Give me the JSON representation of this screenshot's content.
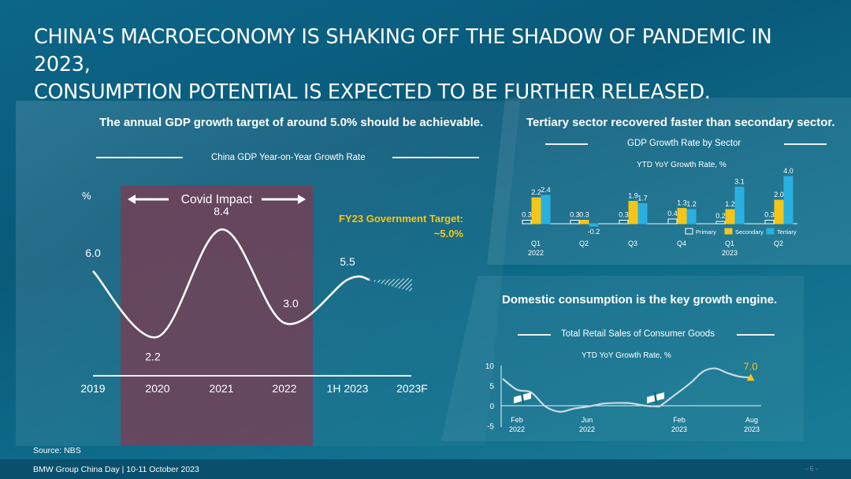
{
  "title_line1": "CHINA'S MACROECONOMY IS SHAKING OFF THE SHADOW OF PANDEMIC IN 2023,",
  "title_line2": "CONSUMPTION POTENTIAL IS EXPECTED TO BE FURTHER RELEASED.",
  "source": "Source: NBS",
  "footer": "BMW Group China Day | 10-11 October 2023",
  "page": "- 6 -",
  "colors": {
    "primary": "#ffffff",
    "secondary": "#f5c518",
    "tertiary": "#2ab0e0",
    "covid": "#7a3c52",
    "target": "#f5c518"
  },
  "panels": {
    "gdp": {
      "header": "The annual GDP growth target of around 5.0% should be achievable.",
      "subtitle": "China GDP Year-on-Year Growth Rate",
      "unit": "%",
      "covid_label": "Covid Impact",
      "target_line1": "FY23 Government Target:",
      "target_line2": "~5.0%"
    },
    "sector": {
      "header": "Tertiary sector recovered faster than secondary sector.",
      "subtitle": "GDP Growth Rate by Sector",
      "unit_label": "YTD YoY Growth Rate, %"
    },
    "retail": {
      "header": "Domestic consumption is the key growth engine.",
      "subtitle": "Total Retail Sales of Consumer Goods",
      "unit_label": "YTD YoY Growth Rate, %"
    }
  },
  "chart_data": [
    {
      "type": "line",
      "x": [
        "2019",
        "2020",
        "2021",
        "2022",
        "1H 2023",
        "2023F"
      ],
      "values": [
        6.0,
        2.2,
        8.4,
        3.0,
        5.5,
        5.0
      ],
      "value_labels": [
        "6.0",
        "2.2",
        "8.4",
        "3.0",
        "5.5",
        ""
      ],
      "forecast_from": "1H 2023",
      "shaded_range": [
        "2020",
        "2022"
      ],
      "ylabel": "%"
    },
    {
      "type": "bar",
      "categories": [
        "Q1",
        "Q2",
        "Q3",
        "Q4",
        "Q1",
        "Q2"
      ],
      "category_years": [
        "2022",
        "",
        "",
        "",
        "2023",
        ""
      ],
      "series": [
        {
          "name": "Primary",
          "values": [
            0.3,
            0.3,
            0.3,
            0.4,
            0.2,
            0.3
          ]
        },
        {
          "name": "Secondary",
          "values": [
            2.2,
            0.3,
            1.9,
            1.3,
            1.2,
            2.0
          ]
        },
        {
          "name": "Tertiary",
          "values": [
            2.4,
            -0.2,
            1.7,
            1.2,
            3.1,
            4.0
          ]
        }
      ],
      "legend": "bottom-right"
    },
    {
      "type": "line",
      "x_ticks": [
        {
          "month": "Feb",
          "year": "2022"
        },
        {
          "month": "Jun",
          "year": "2022"
        },
        {
          "month": "Feb",
          "year": "2023"
        },
        {
          "month": "Aug",
          "year": "2023"
        }
      ],
      "y_ticks": [
        "10",
        "5",
        "0",
        "-5"
      ],
      "ylim": [
        -5,
        10
      ],
      "points": [
        {
          "x": "Jan 2022",
          "y": 6.7
        },
        {
          "x": "Feb 2022",
          "y": 4.0
        },
        {
          "x": "Mar 2022",
          "y": 3.3
        },
        {
          "x": "Apr 2022",
          "y": -0.2
        },
        {
          "x": "May 2022",
          "y": -1.5
        },
        {
          "x": "Jun 2022",
          "y": -0.7
        },
        {
          "x": "Jul 2022",
          "y": -0.2
        },
        {
          "x": "Aug 2022",
          "y": 0.5
        },
        {
          "x": "Sep 2022",
          "y": 0.7
        },
        {
          "x": "Oct 2022",
          "y": 0.6
        },
        {
          "x": "Nov 2022",
          "y": 0.0
        },
        {
          "x": "Dec 2022",
          "y": -0.2
        },
        {
          "x": "Feb 2023",
          "y": 3.5
        },
        {
          "x": "Mar 2023",
          "y": 5.8
        },
        {
          "x": "Apr 2023",
          "y": 8.5
        },
        {
          "x": "May 2023",
          "y": 9.3
        },
        {
          "x": "Jun 2023",
          "y": 8.2
        },
        {
          "x": "Jul 2023",
          "y": 7.3
        },
        {
          "x": "Aug 2023",
          "y": 7.0
        }
      ],
      "last_value_label": "7.0"
    }
  ]
}
